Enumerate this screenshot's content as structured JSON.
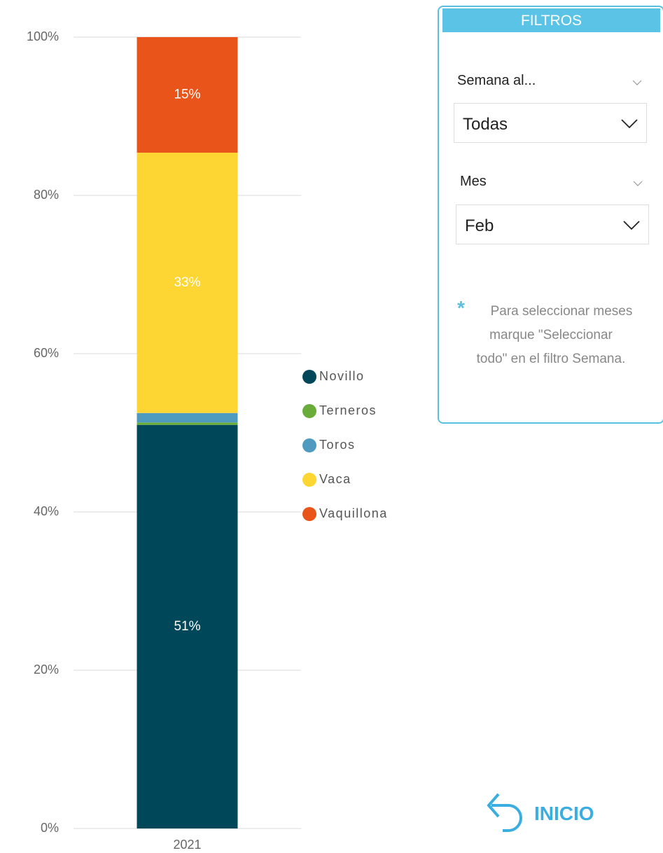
{
  "chart_data": {
    "type": "bar",
    "stacked": true,
    "categories": [
      "2021"
    ],
    "series": [
      {
        "name": "Novillo",
        "color": "#01475a",
        "values": [
          51.0
        ],
        "value_labels": [
          "51%"
        ]
      },
      {
        "name": "Terneros",
        "color": "#6aac3a",
        "values": [
          0.3
        ]
      },
      {
        "name": "Toros",
        "color": "#4f9bc0",
        "values": [
          1.2
        ]
      },
      {
        "name": "Vaca",
        "color": "#fdd633",
        "values": [
          32.9
        ],
        "value_labels": [
          "33%"
        ]
      },
      {
        "name": "Vaquillona",
        "color": "#e8541a",
        "values": [
          14.6
        ],
        "value_labels": [
          "15%"
        ]
      }
    ],
    "ylim": [
      0,
      100
    ],
    "yticks": [
      {
        "value": 0,
        "label": "0%"
      },
      {
        "value": 20,
        "label": "20%"
      },
      {
        "value": 40,
        "label": "40%"
      },
      {
        "value": 60,
        "label": "60%"
      },
      {
        "value": 80,
        "label": "80%"
      },
      {
        "value": 100,
        "label": "100%"
      }
    ],
    "grid": true,
    "legend": "right"
  },
  "filters": {
    "title": "FILTROS",
    "items": [
      {
        "label": "Semana al...",
        "value": "Todas"
      },
      {
        "label": "Mes",
        "value": "Feb"
      }
    ],
    "note_mark": "*",
    "note_lines": [
      "Para seleccionar meses",
      "marque \"Seleccionar",
      "todo\" en el filtro Semana."
    ]
  },
  "button": {
    "label": "INICIO"
  }
}
